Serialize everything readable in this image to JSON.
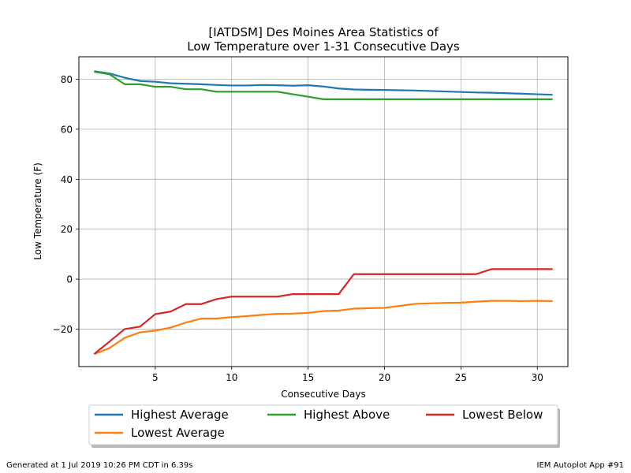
{
  "chart_data": {
    "type": "line",
    "title": [
      "[IATDSM] Des Moines Area Statistics of",
      "Low Temperature over 1-31 Consecutive Days"
    ],
    "xlabel": "Consecutive Days",
    "ylabel": "Low Temperature (F)",
    "xlim": [
      0,
      32
    ],
    "ylim": [
      -35,
      89
    ],
    "xticks": [
      5,
      10,
      15,
      20,
      25,
      30
    ],
    "yticks": [
      -20,
      0,
      20,
      40,
      60,
      80
    ],
    "grid": true,
    "legend_position": "below",
    "x": [
      1,
      2,
      3,
      4,
      5,
      6,
      7,
      8,
      9,
      10,
      11,
      12,
      13,
      14,
      15,
      16,
      17,
      18,
      19,
      20,
      21,
      22,
      23,
      24,
      25,
      26,
      27,
      28,
      29,
      30,
      31
    ],
    "series": [
      {
        "name": "Highest Average",
        "color": "#1f77b4",
        "values": [
          83.2,
          82.3,
          80.6,
          79.3,
          79.0,
          78.4,
          78.2,
          78.0,
          77.7,
          77.5,
          77.5,
          77.7,
          77.6,
          77.4,
          77.6,
          77.1,
          76.3,
          75.9,
          75.8,
          75.7,
          75.6,
          75.5,
          75.3,
          75.1,
          74.9,
          74.7,
          74.6,
          74.4,
          74.2,
          74.0,
          73.8
        ]
      },
      {
        "name": "Highest Above",
        "color": "#2ca02c",
        "values": [
          83,
          82,
          78,
          78,
          77,
          77,
          76,
          76,
          75,
          75,
          75,
          75,
          75,
          74,
          73,
          72,
          72,
          72,
          72,
          72,
          72,
          72,
          72,
          72,
          72,
          72,
          72,
          72,
          72,
          72,
          72
        ]
      },
      {
        "name": "Lowest Below",
        "color": "#d62728",
        "values": [
          -30,
          -25,
          -20,
          -19,
          -14,
          -13,
          -10,
          -10,
          -8,
          -7,
          -7,
          -7,
          -7,
          -6,
          -6,
          -6,
          -6,
          2,
          2,
          2,
          2,
          2,
          2,
          2,
          2,
          2,
          4,
          4,
          4,
          4,
          4
        ]
      },
      {
        "name": "Lowest Average",
        "color": "#ff7f0e",
        "values": [
          -30,
          -27.6,
          -23.5,
          -21.3,
          -20.6,
          -19.4,
          -17.4,
          -15.8,
          -15.8,
          -15.2,
          -14.8,
          -14.3,
          -13.9,
          -13.8,
          -13.5,
          -12.8,
          -12.6,
          -11.8,
          -11.6,
          -11.5,
          -10.7,
          -9.9,
          -9.7,
          -9.5,
          -9.4,
          -9.0,
          -8.7,
          -8.7,
          -8.8,
          -8.7,
          -8.8
        ]
      }
    ],
    "legend_order": [
      "Highest Average",
      "Highest Above",
      "Lowest Below",
      "Lowest Average"
    ]
  },
  "footer": {
    "generated": "Generated at 1 Jul 2019 10:26 PM CDT in 6.39s",
    "app": "IEM Autoplot App #91"
  }
}
